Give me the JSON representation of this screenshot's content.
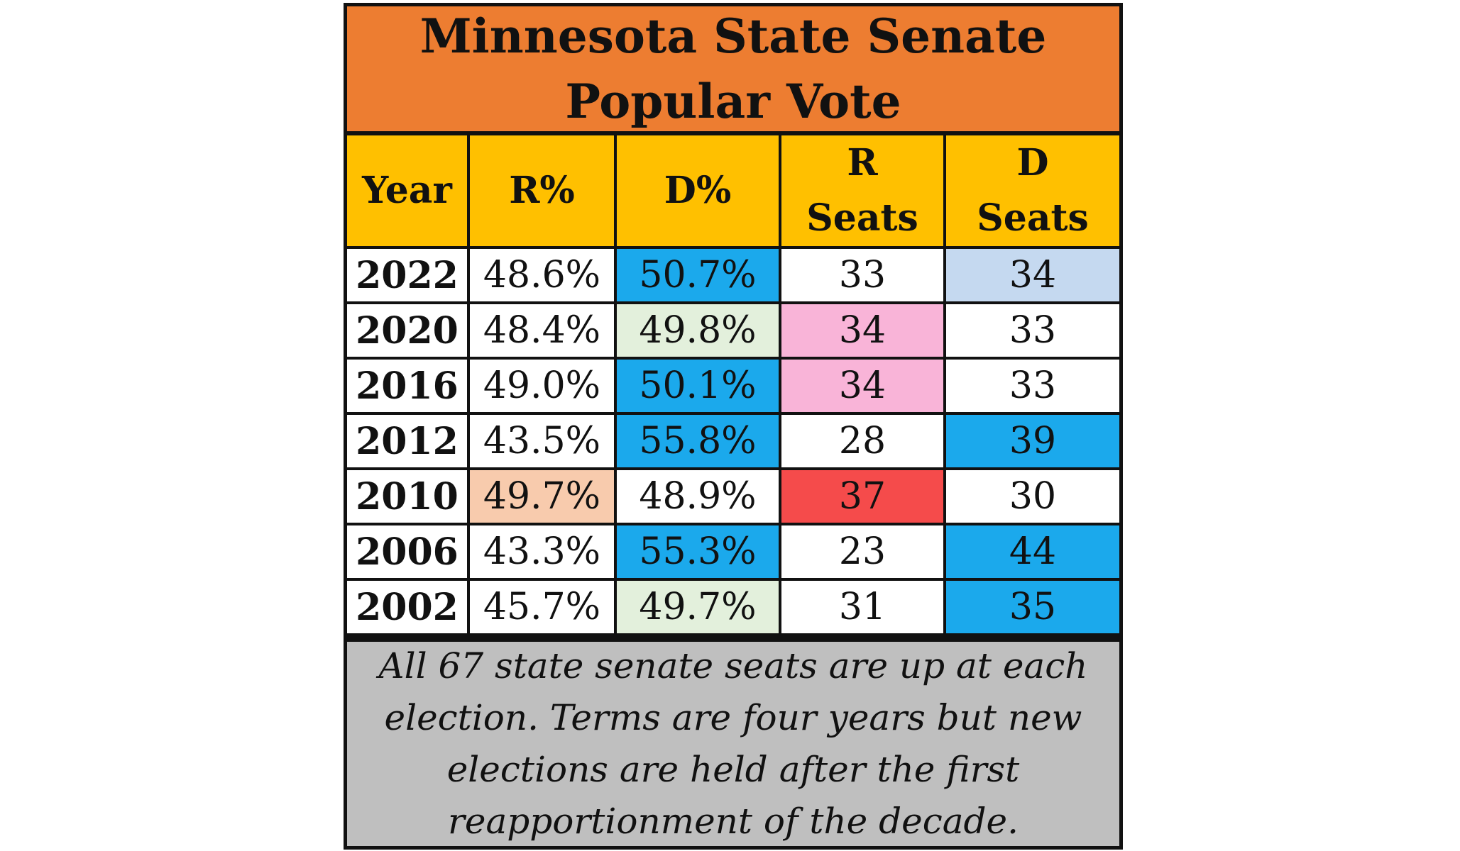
{
  "title_lines": [
    "Minnesota State Senate",
    "Popular Vote"
  ],
  "chart_data": {
    "type": "table",
    "title": "Minnesota State Senate Popular Vote",
    "columns": [
      {
        "label_lines": [
          "Year"
        ]
      },
      {
        "label_lines": [
          "R%"
        ]
      },
      {
        "label_lines": [
          "D%"
        ]
      },
      {
        "label_lines": [
          "R",
          "Seats"
        ]
      },
      {
        "label_lines": [
          "D",
          "Seats"
        ]
      }
    ],
    "rows": [
      {
        "cells": [
          "2022",
          "48.6%",
          "50.7%",
          "33",
          "34"
        ],
        "fills": [
          "#FFFFFF",
          "#FFFFFF",
          "#1BA9EC",
          "#FFFFFF",
          "#C5D9F0"
        ]
      },
      {
        "cells": [
          "2020",
          "48.4%",
          "49.8%",
          "34",
          "33"
        ],
        "fills": [
          "#FFFFFF",
          "#FFFFFF",
          "#E3F0DC",
          "#F9B4D8",
          "#FFFFFF"
        ]
      },
      {
        "cells": [
          "2016",
          "49.0%",
          "50.1%",
          "34",
          "33"
        ],
        "fills": [
          "#FFFFFF",
          "#FFFFFF",
          "#1BA9EC",
          "#F9B4D8",
          "#FFFFFF"
        ]
      },
      {
        "cells": [
          "2012",
          "43.5%",
          "55.8%",
          "28",
          "39"
        ],
        "fills": [
          "#FFFFFF",
          "#FFFFFF",
          "#1BA9EC",
          "#FFFFFF",
          "#1BA9EC"
        ]
      },
      {
        "cells": [
          "2010",
          "49.7%",
          "48.9%",
          "37",
          "30"
        ],
        "fills": [
          "#FFFFFF",
          "#F8CBAD",
          "#FFFFFF",
          "#F54B4B",
          "#FFFFFF"
        ]
      },
      {
        "cells": [
          "2006",
          "43.3%",
          "55.3%",
          "23",
          "44"
        ],
        "fills": [
          "#FFFFFF",
          "#FFFFFF",
          "#1BA9EC",
          "#FFFFFF",
          "#1BA9EC"
        ]
      },
      {
        "cells": [
          "2002",
          "45.7%",
          "49.7%",
          "31",
          "35"
        ],
        "fills": [
          "#FFFFFF",
          "#FFFFFF",
          "#E3F0DC",
          "#FFFFFF",
          "#1BA9EC"
        ]
      }
    ]
  },
  "note_lines": [
    "All 67 state senate seats are up at each",
    "election. Terms are four years but new",
    "elections are held after the first",
    "reapportionment of the decade."
  ],
  "colors": {
    "title_bg": "#ED7D31",
    "header_bg": "#FFC000",
    "note_bg": "#BFBFBF",
    "border": "#111111"
  }
}
